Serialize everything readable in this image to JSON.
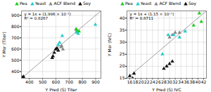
{
  "chart_data": [
    {
      "type": "scatter",
      "xlabel": "Y Pred (S) Titer",
      "ylabel": "Y Msr (Titer)",
      "annotations": [
        "y = 1x + (1.996 × 10⁻¹)",
        "R² = 0.8267"
      ],
      "xlim": [
        340,
        940
      ],
      "ylim": [
        340,
        940
      ],
      "xticks": [
        400,
        500,
        600,
        700,
        800,
        900
      ],
      "yticks": [
        400,
        500,
        600,
        700,
        800,
        900
      ],
      "grid": true,
      "legend": "top",
      "series": [
        {
          "name": "Pea",
          "color": "#22cc22",
          "marker": "triangle",
          "x": [
            755,
            758,
            775
          ],
          "values": [
            775,
            768,
            758
          ]
        },
        {
          "name": "Yeast",
          "color": "#22cccc",
          "marker": "triangle",
          "x": [
            617,
            628,
            648,
            758,
            768,
            898
          ],
          "values": [
            638,
            658,
            718,
            748,
            738,
            818
          ]
        },
        {
          "name": "ACF Blend",
          "color": "#888888",
          "marker": "triangle",
          "x": [
            638,
            643,
            653,
            758,
            752
          ],
          "values": [
            618,
            628,
            598,
            758,
            778
          ]
        },
        {
          "name": "Soy",
          "color": "#111111",
          "marker": "triangle",
          "x": [
            348,
            352,
            356,
            572,
            578,
            588,
            598,
            608,
            618
          ],
          "values": [
            348,
            342,
            355,
            522,
            538,
            568,
            598,
            608,
            588
          ]
        }
      ]
    },
    {
      "type": "scatter",
      "xlabel": "Y Pred (S) IVC",
      "ylabel": "Y Msr (IVC)",
      "annotations": [
        "y = 1x + (1.15 × 10⁻¹)",
        "R² = 0.8711"
      ],
      "xlim": [
        15,
        43
      ],
      "ylim": [
        15,
        43
      ],
      "xticks": [
        16,
        18,
        20,
        22,
        24,
        26,
        28,
        30,
        32,
        34,
        36,
        38,
        40,
        42
      ],
      "yticks": [
        15,
        20,
        25,
        30,
        35,
        40
      ],
      "grid": true,
      "legend": "top",
      "series": [
        {
          "name": "Pea",
          "color": "#22cc22",
          "marker": "triangle",
          "x": [
            40.5,
            41.2,
            38.5
          ],
          "values": [
            42.0,
            38.5,
            37.0
          ]
        },
        {
          "name": "Yeast",
          "color": "#22cccc",
          "marker": "triangle",
          "x": [
            27.5,
            29.5,
            31.5,
            33.5,
            35.5
          ],
          "values": [
            25.0,
            33.0,
            33.0,
            32.0,
            34.5
          ]
        },
        {
          "name": "ACF Blend",
          "color": "#888888",
          "marker": "triangle",
          "x": [
            30.0,
            31.0,
            32.0,
            33.5
          ],
          "values": [
            32.0,
            33.0,
            34.0,
            34.0
          ]
        },
        {
          "name": "Soy",
          "color": "#111111",
          "marker": "triangle",
          "x": [
            16.0,
            17.0,
            17.5,
            28.0,
            29.0,
            30.0,
            31.0
          ],
          "values": [
            16.0,
            15.0,
            17.0,
            19.0,
            20.0,
            21.0,
            22.0
          ]
        }
      ]
    }
  ]
}
